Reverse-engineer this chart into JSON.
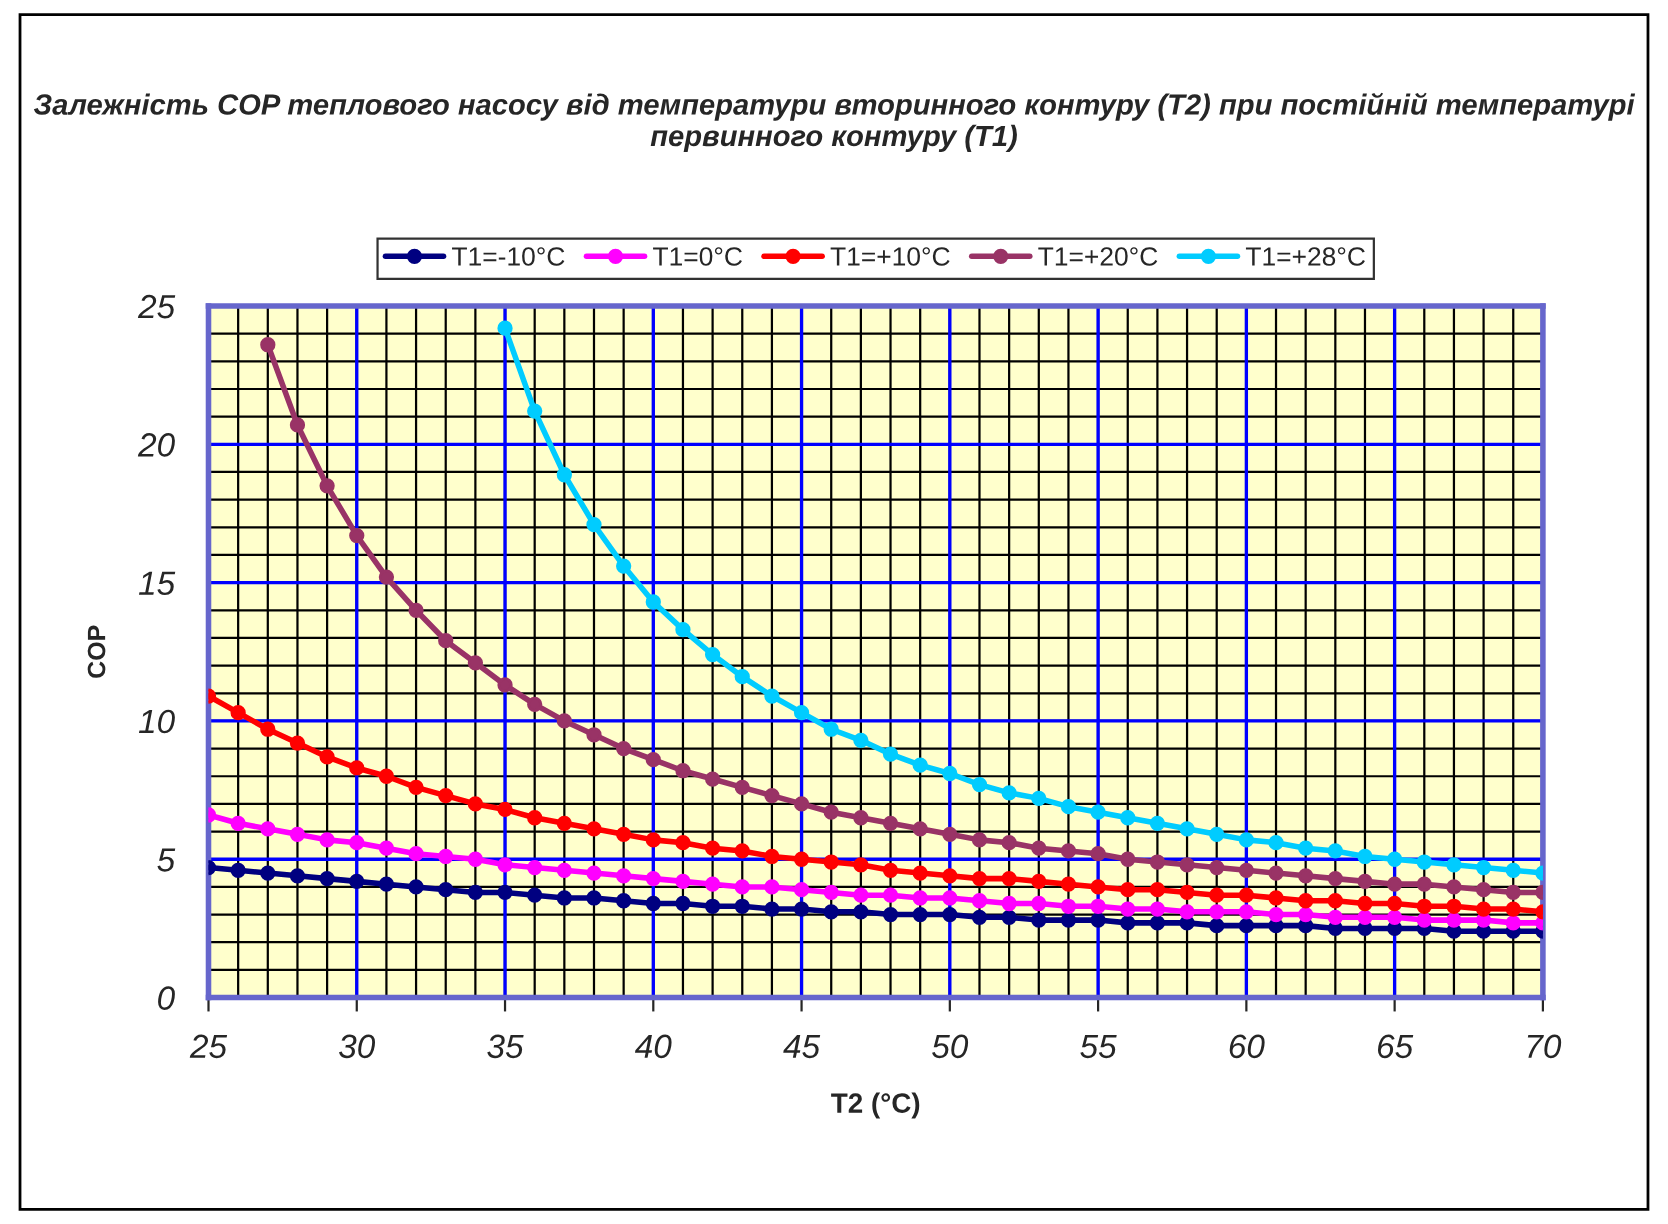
{
  "chart_data": {
    "type": "line",
    "title": "Залежність COP теплового насосу від температури вторинного контуру (T2) при постійній температурі первинного контуру (T1)",
    "xlabel": "T2 (°C)",
    "ylabel": "COP",
    "x": [
      25,
      26,
      27,
      28,
      29,
      30,
      31,
      32,
      33,
      34,
      35,
      36,
      37,
      38,
      39,
      40,
      41,
      42,
      43,
      44,
      45,
      46,
      47,
      48,
      49,
      50,
      51,
      52,
      53,
      54,
      55,
      56,
      57,
      58,
      59,
      60,
      61,
      62,
      63,
      64,
      65,
      66,
      67,
      68,
      69,
      70
    ],
    "series": [
      {
        "name": "T1=-10°C",
        "color": "#000080",
        "values": [
          4.7,
          4.6,
          4.5,
          4.4,
          4.3,
          4.2,
          4.1,
          4.0,
          3.9,
          3.8,
          3.8,
          3.7,
          3.6,
          3.6,
          3.5,
          3.4,
          3.4,
          3.3,
          3.3,
          3.2,
          3.2,
          3.1,
          3.1,
          3.0,
          3.0,
          3.0,
          2.9,
          2.9,
          2.8,
          2.8,
          2.8,
          2.7,
          2.7,
          2.7,
          2.6,
          2.6,
          2.6,
          2.6,
          2.5,
          2.5,
          2.5,
          2.5,
          2.4,
          2.4,
          2.4,
          2.4
        ]
      },
      {
        "name": "T1=0°C",
        "color": "#ff00ff",
        "values": [
          6.6,
          6.3,
          6.1,
          5.9,
          5.7,
          5.6,
          5.4,
          5.2,
          5.1,
          5.0,
          4.8,
          4.7,
          4.6,
          4.5,
          4.4,
          4.3,
          4.2,
          4.1,
          4.0,
          4.0,
          3.9,
          3.8,
          3.7,
          3.7,
          3.6,
          3.6,
          3.5,
          3.4,
          3.4,
          3.3,
          3.3,
          3.2,
          3.2,
          3.1,
          3.1,
          3.1,
          3.0,
          3.0,
          2.9,
          2.9,
          2.9,
          2.8,
          2.8,
          2.8,
          2.7,
          2.7
        ]
      },
      {
        "name": "T1=+10°C",
        "color": "#ff0000",
        "values": [
          10.9,
          10.3,
          9.7,
          9.2,
          8.7,
          8.3,
          8.0,
          7.6,
          7.3,
          7.0,
          6.8,
          6.5,
          6.3,
          6.1,
          5.9,
          5.7,
          5.6,
          5.4,
          5.3,
          5.1,
          5.0,
          4.9,
          4.8,
          4.6,
          4.5,
          4.4,
          4.3,
          4.3,
          4.2,
          4.1,
          4.0,
          3.9,
          3.9,
          3.8,
          3.7,
          3.7,
          3.6,
          3.5,
          3.5,
          3.4,
          3.4,
          3.3,
          3.3,
          3.2,
          3.2,
          3.1
        ]
      },
      {
        "name": "T1=+20°C",
        "color": "#993366",
        "values": [
          null,
          null,
          23.6,
          20.7,
          18.5,
          16.7,
          15.2,
          14.0,
          12.9,
          12.1,
          11.3,
          10.6,
          10.0,
          9.5,
          9.0,
          8.6,
          8.2,
          7.9,
          7.6,
          7.3,
          7.0,
          6.7,
          6.5,
          6.3,
          6.1,
          5.9,
          5.7,
          5.6,
          5.4,
          5.3,
          5.2,
          5.0,
          4.9,
          4.8,
          4.7,
          4.6,
          4.5,
          4.4,
          4.3,
          4.2,
          4.1,
          4.1,
          4.0,
          3.9,
          3.8,
          3.8
        ]
      },
      {
        "name": "T1=+28°C",
        "color": "#00ccff",
        "values": [
          null,
          null,
          null,
          null,
          null,
          null,
          null,
          null,
          null,
          null,
          24.2,
          21.2,
          18.9,
          17.1,
          15.6,
          14.3,
          13.3,
          12.4,
          11.6,
          10.9,
          10.3,
          9.7,
          9.3,
          8.8,
          8.4,
          8.1,
          7.7,
          7.4,
          7.2,
          6.9,
          6.7,
          6.5,
          6.3,
          6.1,
          5.9,
          5.7,
          5.6,
          5.4,
          5.3,
          5.1,
          5.0,
          4.9,
          4.8,
          4.7,
          4.6,
          4.5
        ]
      }
    ],
    "xlim": [
      25,
      70
    ],
    "xticks": [
      25,
      30,
      35,
      40,
      45,
      50,
      55,
      60,
      65,
      70
    ],
    "ylim": [
      0,
      25
    ],
    "yticks": [
      0,
      5,
      10,
      15,
      20,
      25
    ],
    "grid": true,
    "legend": "top",
    "marker": "circle",
    "line_style": "solid"
  }
}
